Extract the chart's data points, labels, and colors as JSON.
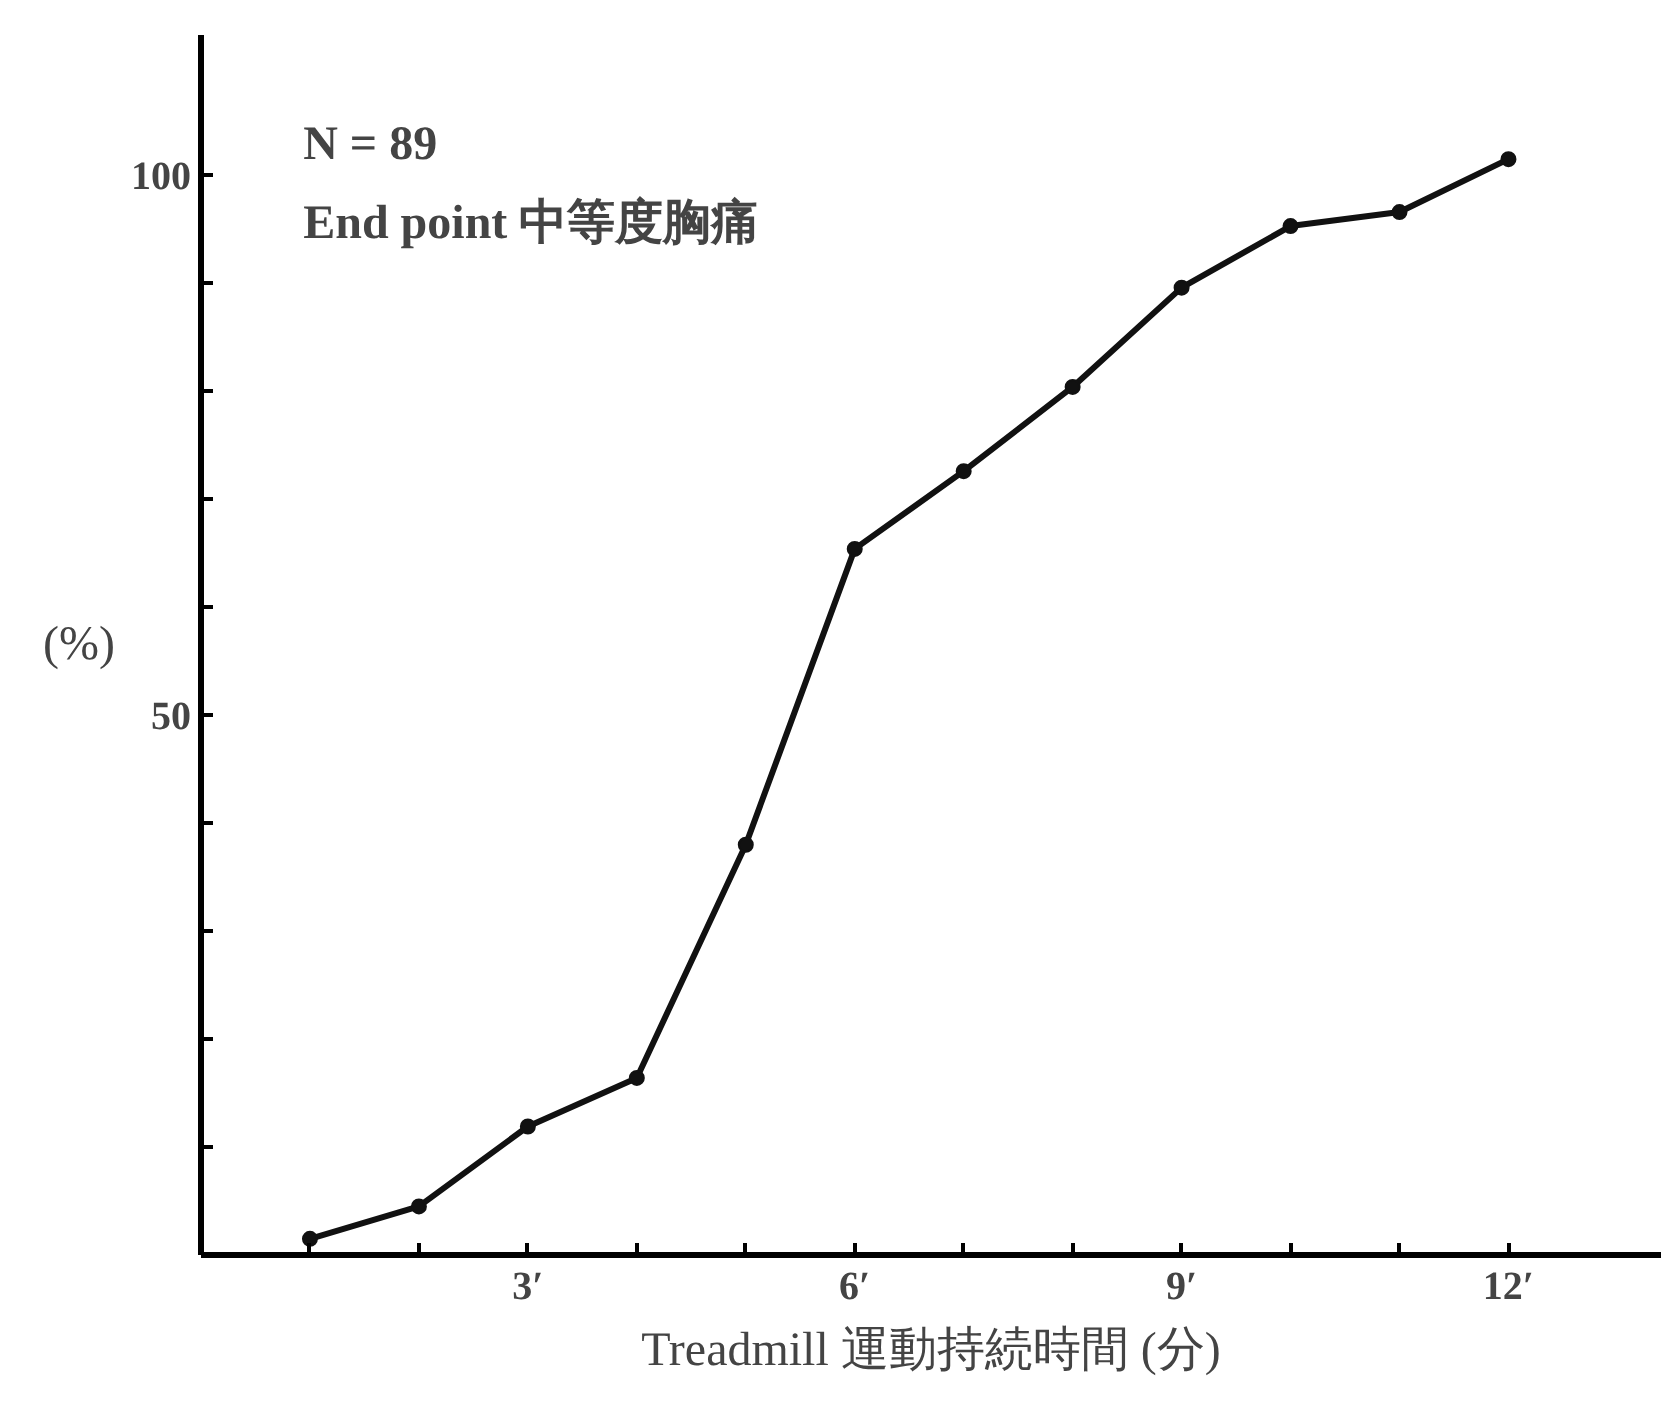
{
  "chart_data": {
    "type": "line",
    "xlabel": "Treadmill 運動持続時間 (分)",
    "ylabel": "(%)",
    "annotations": [
      "N = 89",
      "End point 中等度胸痛"
    ],
    "x": [
      1,
      2,
      3,
      4,
      5,
      6,
      7,
      8,
      9,
      10,
      11,
      12
    ],
    "series": [
      {
        "color": "#111111",
        "values": [
          1.5,
          4.5,
          11.9,
          16.4,
          38,
          65.4,
          72.6,
          80.4,
          89.6,
          95.3,
          96.6,
          101.5
        ]
      }
    ],
    "xlim": [
      0,
      13.4
    ],
    "ylim": [
      0,
      113
    ],
    "xticks": [
      {
        "value": 1,
        "label": null
      },
      {
        "value": 2,
        "label": null
      },
      {
        "value": 3,
        "label": "3′"
      },
      {
        "value": 4,
        "label": null
      },
      {
        "value": 5,
        "label": null
      },
      {
        "value": 6,
        "label": "6′"
      },
      {
        "value": 7,
        "label": null
      },
      {
        "value": 8,
        "label": null
      },
      {
        "value": 9,
        "label": "9′"
      },
      {
        "value": 10,
        "label": null
      },
      {
        "value": 11,
        "label": null
      },
      {
        "value": 12,
        "label": "12′"
      }
    ],
    "yticks": [
      {
        "value": 10,
        "label": null
      },
      {
        "value": 20,
        "label": null
      },
      {
        "value": 30,
        "label": null
      },
      {
        "value": 40,
        "label": null
      },
      50,
      {
        "value": 60,
        "label": null
      },
      {
        "value": 70,
        "label": null
      },
      {
        "value": 80,
        "label": null
      },
      {
        "value": 90,
        "label": null
      },
      100
    ],
    "grid": false,
    "marker": "circle",
    "line_style": "solid"
  }
}
